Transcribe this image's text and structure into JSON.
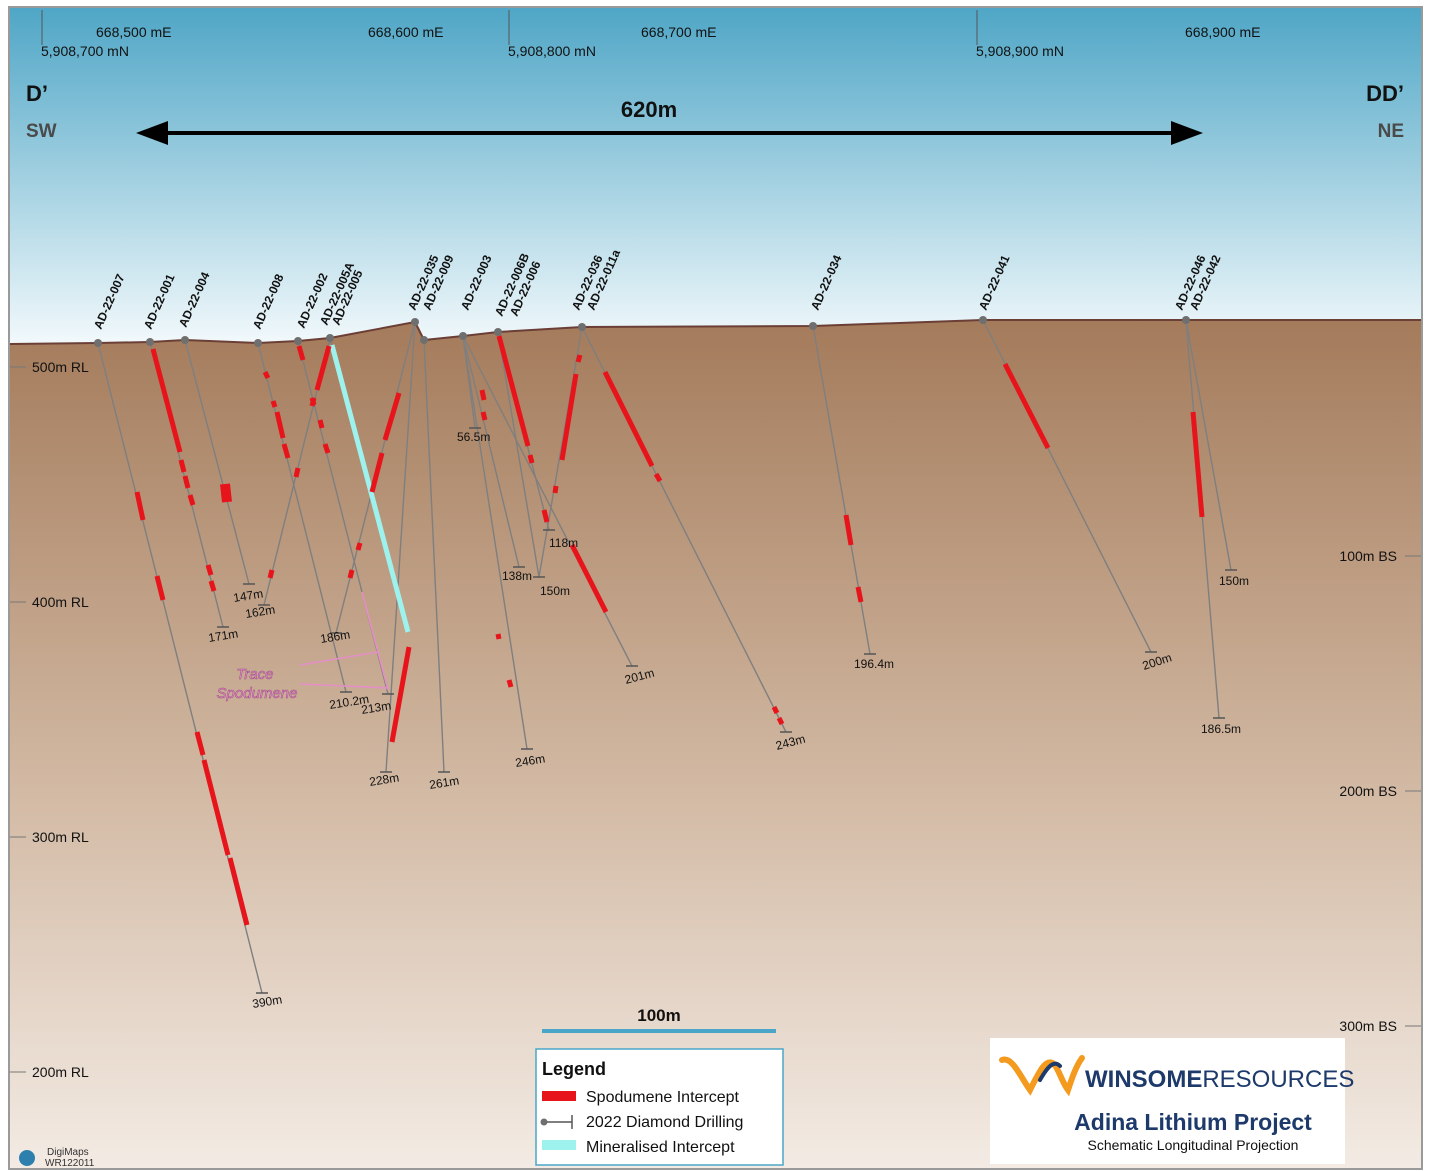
{
  "colors": {
    "sky_top": "#4fa6c6",
    "sky_bottom": "#f4fafc",
    "ground_top": "#a47b5b",
    "ground_bottom": "#f1e8e0",
    "spodumene": "#e8141c",
    "mineralised": "#9df2ee",
    "trace": "#e58fc7",
    "drill": "#808080",
    "scale_bar": "#4aa6c8",
    "accent_orange": "#f39a1f",
    "brand_navy": "#1d3a6b"
  },
  "header": {
    "easting_labels": [
      "668,500 mE",
      "668,600 mE",
      "668,700 mE",
      "668,900 mE"
    ],
    "northing_labels": [
      "5,908,700 mN",
      "5,908,800 mN",
      "5,908,900 mN"
    ],
    "left_section": "D’",
    "left_direction": "SW",
    "right_section": "DD’",
    "right_direction": "NE",
    "width_label": "620m"
  },
  "left_axis": [
    "500m RL",
    "400m RL",
    "300m RL",
    "200m RL"
  ],
  "right_axis": [
    "100m BS",
    "200m BS",
    "300m BS"
  ],
  "holes": [
    "AD-22-007",
    "AD-22-001",
    "AD-22-004",
    "AD-22-008",
    "AD-22-002",
    "AD-22-005A",
    "AD-22-005",
    "AD-22-035",
    "AD-22-009",
    "AD-22-003",
    "AD-22-006B",
    "AD-22-006",
    "AD-22-036",
    "AD-22-011a",
    "AD-22-034",
    "AD-22-041",
    "AD-22-046",
    "AD-22-042"
  ],
  "depths": [
    "390m",
    "171m",
    "147m",
    "162m",
    "186m",
    "210.2m",
    "213m",
    "228m",
    "261m",
    "56.5m",
    "138m",
    "150m",
    "118m",
    "246m",
    "201m",
    "243m",
    "196.4m",
    "200m",
    "150m",
    "186.5m"
  ],
  "annotation": "Trace\nSpodumene",
  "scale": {
    "label": "100m"
  },
  "legend": {
    "title": "Legend",
    "items": [
      "Spodumene Intercept",
      "2022 Diamond Drilling",
      "Mineralised Intercept"
    ]
  },
  "brand": {
    "name_bold": "WINSOME",
    "name_light": "RESOURCES",
    "project": "Adina Lithium Project",
    "subtitle": "Schematic Longitudinal Projection"
  },
  "credit": {
    "line1": "DigiMaps",
    "line2": "WR122011"
  }
}
